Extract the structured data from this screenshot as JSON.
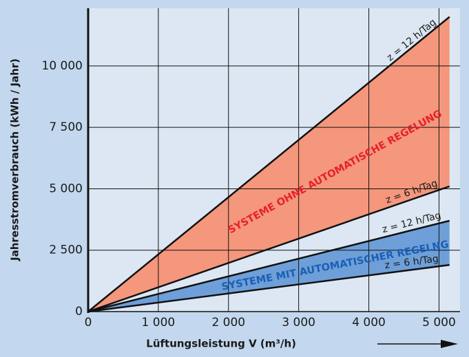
{
  "chart_data": {
    "type": "line",
    "x_label": "Lüftungsleistung V (m³/h)",
    "y_label": "Jahresstromverbrauch (kWh / Jahr)",
    "xlim": [
      0,
      5300
    ],
    "ylim": [
      0,
      12350
    ],
    "xticks": [
      0,
      {
        "value": 1000,
        "label": "1 000"
      },
      {
        "value": 2000,
        "label": "2 000"
      },
      {
        "value": 3000,
        "label": "3 000"
      },
      {
        "value": 4000,
        "label": "4 000"
      },
      {
        "value": 5000,
        "label": "5 000"
      }
    ],
    "yticks": [
      0,
      {
        "value": 2500,
        "label": "2 500"
      },
      {
        "value": 5000,
        "label": "5 000"
      },
      {
        "value": 7500,
        "label": "7 500"
      },
      {
        "value": 10000,
        "label": "10 000"
      }
    ],
    "grid": true,
    "series": [
      {
        "name": "z = 12 h/Tag",
        "color": "#111111",
        "x": [
          0,
          5150
        ],
        "values": [
          0,
          12000
        ]
      },
      {
        "name": "z = 6 h/Tag",
        "color": "#111111",
        "x": [
          0,
          5150
        ],
        "values": [
          0,
          5100
        ]
      },
      {
        "name": "z = 12 h/Tag",
        "color": "#111111",
        "x": [
          0,
          5150
        ],
        "values": [
          0,
          3700
        ]
      },
      {
        "name": "z = 6 h/Tag",
        "color": "#111111",
        "x": [
          0,
          5150
        ],
        "values": [
          0,
          1900
        ]
      }
    ],
    "bands": [
      {
        "label": "SYSTEME OHNE AUTOMATISCHE REGELUNG",
        "color": "#f4977c",
        "text_color": "#e8202a"
      },
      {
        "label": "SYSTEME MIT AUTOMATISCHER REGELNG",
        "color": "#6e9fd8",
        "text_color": "#1a5fb4"
      }
    ]
  }
}
